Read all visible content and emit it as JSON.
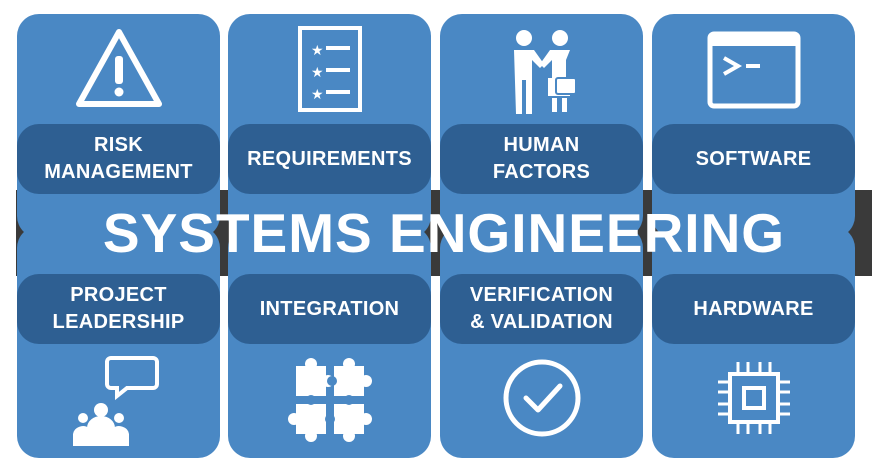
{
  "title": "SYSTEMS ENGINEERING",
  "colors": {
    "card": "#4a88c4",
    "label_band": "#2e5f92",
    "title_band": "#3a3a3a",
    "text": "#ffffff"
  },
  "top_cards": [
    {
      "label": "RISK\nMANAGEMENT",
      "icon": "warning-triangle-icon"
    },
    {
      "label": "REQUIREMENTS",
      "icon": "checklist-icon"
    },
    {
      "label": "HUMAN\nFACTORS",
      "icon": "handshake-people-icon"
    },
    {
      "label": "SOFTWARE",
      "icon": "terminal-window-icon"
    }
  ],
  "bottom_cards": [
    {
      "label": "PROJECT\nLEADERSHIP",
      "icon": "team-speech-bubble-icon"
    },
    {
      "label": "INTEGRATION",
      "icon": "puzzle-pieces-icon"
    },
    {
      "label": "VERIFICATION\n& VALIDATION",
      "icon": "check-circle-icon"
    },
    {
      "label": "HARDWARE",
      "icon": "microchip-icon"
    }
  ]
}
